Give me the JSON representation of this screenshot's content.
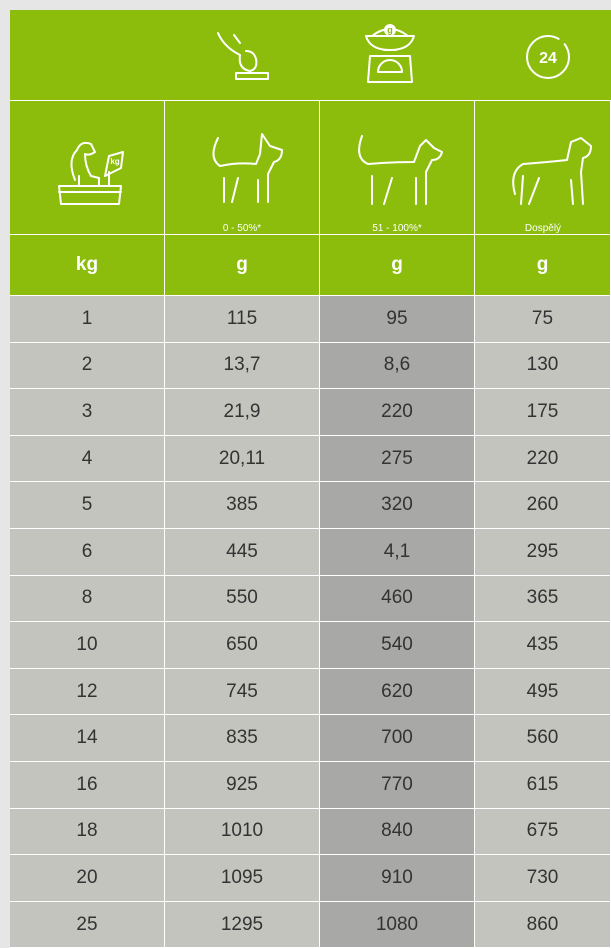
{
  "icons": {
    "scale_label": "g",
    "clock_label": "24",
    "dog_scale_label": "kg"
  },
  "age_labels": [
    "0 - 50%*",
    "51 - 100%*",
    "Dospělý"
  ],
  "table": {
    "header": [
      "kg",
      "g",
      "g",
      "g"
    ],
    "rows": [
      [
        "1",
        "115",
        "95",
        "75"
      ],
      [
        "2",
        "13,7",
        "8,6",
        "130"
      ],
      [
        "3",
        "21,9",
        "220",
        "175"
      ],
      [
        "4",
        "20,11",
        "275",
        "220"
      ],
      [
        "5",
        "385",
        "320",
        "260"
      ],
      [
        "6",
        "445",
        "4,1",
        "295"
      ],
      [
        "8",
        "550",
        "460",
        "365"
      ],
      [
        "10",
        "650",
        "540",
        "435"
      ],
      [
        "12",
        "745",
        "620",
        "495"
      ],
      [
        "14",
        "835",
        "700",
        "560"
      ],
      [
        "16",
        "925",
        "770",
        "615"
      ],
      [
        "18",
        "1010",
        "840",
        "675"
      ],
      [
        "20",
        "1095",
        "910",
        "730"
      ],
      [
        "25",
        "1295",
        "1080",
        "860"
      ]
    ]
  }
}
